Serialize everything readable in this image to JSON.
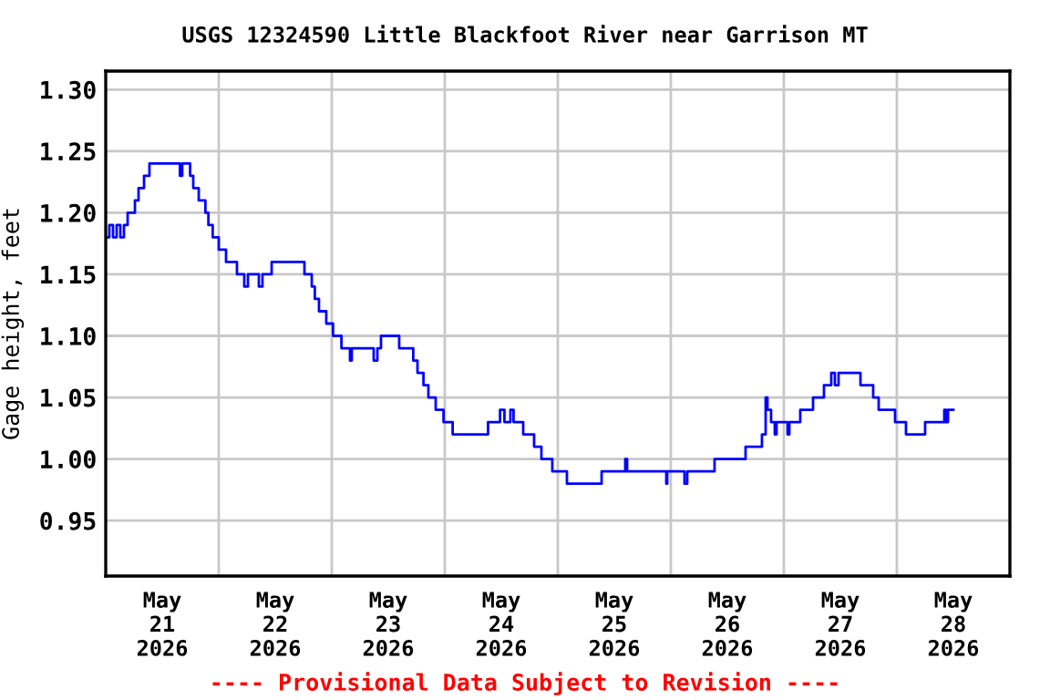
{
  "chart_data": {
    "type": "step",
    "title": "USGS 12324590 Little Blackfoot River near Garrison MT",
    "ylabel": "Gage height, feet",
    "annotations": [
      "---- Provisional Data Subject to Revision ----"
    ],
    "xlim": [
      "2026-05-21T00:00",
      "2026-05-29T00:00"
    ],
    "xticks": [
      {
        "value": "2026-05-21T12:00",
        "label": "May\n21\n2026"
      },
      {
        "value": "2026-05-22T00:00",
        "label": null
      },
      {
        "value": "2026-05-22T12:00",
        "label": "May\n22\n2026"
      },
      {
        "value": "2026-05-23T00:00",
        "label": null
      },
      {
        "value": "2026-05-23T12:00",
        "label": "May\n23\n2026"
      },
      {
        "value": "2026-05-24T00:00",
        "label": null
      },
      {
        "value": "2026-05-24T12:00",
        "label": "May\n24\n2026"
      },
      {
        "value": "2026-05-25T00:00",
        "label": null
      },
      {
        "value": "2026-05-25T12:00",
        "label": "May\n25\n2026"
      },
      {
        "value": "2026-05-26T00:00",
        "label": null
      },
      {
        "value": "2026-05-26T12:00",
        "label": "May\n26\n2026"
      },
      {
        "value": "2026-05-27T00:00",
        "label": null
      },
      {
        "value": "2026-05-27T12:00",
        "label": "May\n27\n2026"
      },
      {
        "value": "2026-05-28T00:00",
        "label": null
      },
      {
        "value": "2026-05-28T12:00",
        "label": "May\n28\n2026"
      }
    ],
    "ylim": [
      0.905,
      1.315
    ],
    "yticks": [
      {
        "value": 0.95,
        "label": "0.95"
      },
      {
        "value": 1.0,
        "label": "1.00"
      },
      {
        "value": 1.05,
        "label": "1.05"
      },
      {
        "value": 1.1,
        "label": "1.10"
      },
      {
        "value": 1.15,
        "label": "1.15"
      },
      {
        "value": 1.2,
        "label": "1.20"
      },
      {
        "value": 1.25,
        "label": "1.25"
      },
      {
        "value": 1.3,
        "label": "1.30"
      }
    ],
    "grid": true,
    "legend": false,
    "marker": "none",
    "line_style": "solid",
    "series": [
      {
        "color": "#0000ff",
        "x": [
          "2026-05-21T00:00",
          "2026-05-21T00:46",
          "2026-05-21T01:33",
          "2026-05-21T02:19",
          "2026-05-21T03:06",
          "2026-05-21T03:52",
          "2026-05-21T04:39",
          "2026-05-21T06:12",
          "2026-05-21T06:58",
          "2026-05-21T08:08",
          "2026-05-21T09:17",
          "2026-05-21T15:13",
          "2026-05-21T15:45",
          "2026-05-21T16:15",
          "2026-05-21T17:32",
          "2026-05-21T17:55",
          "2026-05-21T18:35",
          "2026-05-21T19:45",
          "2026-05-21T21:10",
          "2026-05-21T21:48",
          "2026-05-21T22:43",
          "2026-05-22T00:00",
          "2026-05-22T01:33",
          "2026-05-22T03:52",
          "2026-05-22T05:25",
          "2026-05-22T06:12",
          "2026-05-22T08:31",
          "2026-05-22T09:17",
          "2026-05-22T11:14",
          "2026-05-22T17:48",
          "2026-05-22T18:12",
          "2026-05-22T19:21",
          "2026-05-22T19:45",
          "2026-05-22T20:24",
          "2026-05-22T21:17",
          "2026-05-22T22:50",
          "2026-05-23T00:16",
          "2026-05-23T02:03",
          "2026-05-23T03:52",
          "2026-05-23T04:15",
          "2026-05-23T08:54",
          "2026-05-23T09:41",
          "2026-05-23T10:27",
          "2026-05-23T14:03",
          "2026-05-23T14:19",
          "2026-05-23T16:39",
          "2026-05-23T17:18",
          "2026-05-23T18:12",
          "2026-05-23T19:28",
          "2026-05-23T20:31",
          "2026-05-23T21:48",
          "2026-05-23T22:04",
          "2026-05-23T23:44",
          "2026-05-24T01:40",
          "2026-05-24T08:47",
          "2026-05-24T09:11",
          "2026-05-24T11:21",
          "2026-05-24T11:44",
          "2026-05-24T12:40",
          "2026-05-24T13:56",
          "2026-05-24T14:36",
          "2026-05-24T16:39",
          "2026-05-24T18:58",
          "2026-05-24T20:31",
          "2026-05-24T22:50",
          "2026-05-25T01:56",
          "2026-05-25T08:54",
          "2026-05-25T09:18",
          "2026-05-25T13:56",
          "2026-05-25T14:19",
          "2026-05-25T14:43",
          "2026-05-25T22:50",
          "2026-05-25T23:02",
          "2026-05-25T23:14",
          "2026-05-26T02:43",
          "2026-05-26T02:54",
          "2026-05-26T03:29",
          "2026-05-26T08:31",
          "2026-05-26T09:17",
          "2026-05-26T14:19",
          "2026-05-26T15:52",
          "2026-05-26T18:58",
          "2026-05-26T19:21",
          "2026-05-26T20:08",
          "2026-05-26T20:31",
          "2026-05-26T21:17",
          "2026-05-26T22:04",
          "2026-05-26T22:27",
          "2026-05-27T00:47",
          "2026-05-27T01:10",
          "2026-05-27T03:29",
          "2026-05-27T06:12",
          "2026-05-27T08:31",
          "2026-05-27T10:04",
          "2026-05-27T10:50",
          "2026-05-27T11:37",
          "2026-05-27T15:29",
          "2026-05-27T16:16",
          "2026-05-27T18:35",
          "2026-05-27T18:58",
          "2026-05-27T20:08",
          "2026-05-27T23:14",
          "2026-05-27T23:37",
          "2026-05-28T01:33",
          "2026-05-28T01:56",
          "2026-05-28T05:48",
          "2026-05-28T06:00",
          "2026-05-28T09:41",
          "2026-05-28T10:04",
          "2026-05-28T10:27",
          "2026-05-28T10:51",
          "2026-05-28T12:00"
        ],
        "values": [
          1.18,
          1.19,
          1.18,
          1.19,
          1.18,
          1.19,
          1.2,
          1.21,
          1.22,
          1.23,
          1.24,
          1.24,
          1.23,
          1.24,
          1.24,
          1.23,
          1.22,
          1.21,
          1.2,
          1.19,
          1.18,
          1.17,
          1.16,
          1.15,
          1.14,
          1.15,
          1.14,
          1.15,
          1.16,
          1.16,
          1.15,
          1.15,
          1.14,
          1.13,
          1.12,
          1.11,
          1.1,
          1.09,
          1.08,
          1.09,
          1.08,
          1.09,
          1.1,
          1.1,
          1.09,
          1.09,
          1.08,
          1.07,
          1.06,
          1.05,
          1.05,
          1.04,
          1.03,
          1.02,
          1.02,
          1.03,
          1.03,
          1.04,
          1.03,
          1.04,
          1.03,
          1.02,
          1.01,
          1.0,
          0.99,
          0.98,
          0.98,
          0.99,
          0.99,
          1.0,
          0.99,
          0.99,
          0.98,
          0.99,
          0.99,
          0.98,
          0.99,
          0.99,
          1.0,
          1.0,
          1.01,
          1.01,
          1.02,
          1.05,
          1.04,
          1.03,
          1.02,
          1.03,
          1.02,
          1.03,
          1.04,
          1.05,
          1.06,
          1.07,
          1.06,
          1.07,
          1.07,
          1.06,
          1.06,
          1.05,
          1.04,
          1.04,
          1.03,
          1.03,
          1.02,
          1.02,
          1.03,
          1.03,
          1.04,
          1.03,
          1.04,
          1.04
        ]
      }
    ]
  }
}
